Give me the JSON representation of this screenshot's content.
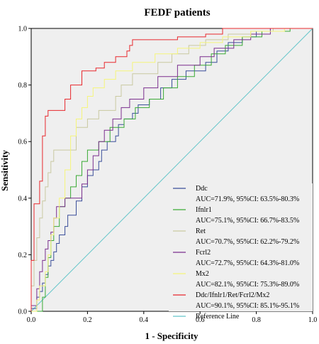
{
  "chart_data": {
    "type": "line",
    "title": "FEDF patients",
    "xlabel": "1 - Specificity",
    "ylabel": "Sensitivity",
    "xlim": [
      0,
      1
    ],
    "ylim": [
      0,
      1
    ],
    "x_ticks": [
      "0.0",
      "0.2",
      "0.4",
      "0.6",
      "0.8",
      "1.0"
    ],
    "y_ticks": [
      "0.0",
      "0.2",
      "0.4",
      "0.6",
      "0.8",
      "1.0"
    ],
    "grid": false,
    "legend_position": "bottom-right",
    "series": [
      {
        "name": "Ddc",
        "auc_text": "AUC=71.9%, 95%CI: 63.5%-80.3%",
        "color": "#3b4f9a",
        "points": [
          [
            0,
            0
          ],
          [
            0,
            0.01
          ],
          [
            0.02,
            0.01
          ],
          [
            0.02,
            0.05
          ],
          [
            0.03,
            0.05
          ],
          [
            0.03,
            0.07
          ],
          [
            0.04,
            0.07
          ],
          [
            0.04,
            0.1
          ],
          [
            0.05,
            0.1
          ],
          [
            0.05,
            0.13
          ],
          [
            0.06,
            0.13
          ],
          [
            0.06,
            0.16
          ],
          [
            0.07,
            0.16
          ],
          [
            0.07,
            0.18
          ],
          [
            0.08,
            0.18
          ],
          [
            0.08,
            0.21
          ],
          [
            0.09,
            0.21
          ],
          [
            0.09,
            0.24
          ],
          [
            0.1,
            0.24
          ],
          [
            0.1,
            0.27
          ],
          [
            0.12,
            0.27
          ],
          [
            0.12,
            0.3
          ],
          [
            0.13,
            0.3
          ],
          [
            0.13,
            0.34
          ],
          [
            0.16,
            0.34
          ],
          [
            0.16,
            0.39
          ],
          [
            0.18,
            0.39
          ],
          [
            0.18,
            0.44
          ],
          [
            0.2,
            0.44
          ],
          [
            0.2,
            0.48
          ],
          [
            0.22,
            0.48
          ],
          [
            0.22,
            0.5
          ],
          [
            0.24,
            0.5
          ],
          [
            0.24,
            0.53
          ],
          [
            0.25,
            0.53
          ],
          [
            0.25,
            0.57
          ],
          [
            0.27,
            0.57
          ],
          [
            0.27,
            0.6
          ],
          [
            0.3,
            0.6
          ],
          [
            0.3,
            0.62
          ],
          [
            0.31,
            0.62
          ],
          [
            0.31,
            0.66
          ],
          [
            0.33,
            0.66
          ],
          [
            0.33,
            0.68
          ],
          [
            0.36,
            0.68
          ],
          [
            0.36,
            0.7
          ],
          [
            0.38,
            0.7
          ],
          [
            0.38,
            0.73
          ],
          [
            0.42,
            0.73
          ],
          [
            0.42,
            0.75
          ],
          [
            0.46,
            0.75
          ],
          [
            0.46,
            0.79
          ],
          [
            0.5,
            0.79
          ],
          [
            0.5,
            0.82
          ],
          [
            0.55,
            0.82
          ],
          [
            0.55,
            0.85
          ],
          [
            0.62,
            0.85
          ],
          [
            0.62,
            0.88
          ],
          [
            0.66,
            0.88
          ],
          [
            0.66,
            0.92
          ],
          [
            0.7,
            0.92
          ],
          [
            0.7,
            0.95
          ],
          [
            0.75,
            0.95
          ],
          [
            0.75,
            0.97
          ],
          [
            0.8,
            0.97
          ],
          [
            0.8,
            0.99
          ],
          [
            0.85,
            0.99
          ],
          [
            0.85,
            1.0
          ],
          [
            1,
            1.0
          ]
        ]
      },
      {
        "name": "Ifnlr1",
        "auc_text": "AUC=75.1%, 95%CI: 66.7%-83.5%",
        "color": "#3aaa35",
        "points": [
          [
            0,
            0
          ],
          [
            0.04,
            0
          ],
          [
            0.04,
            0.05
          ],
          [
            0.05,
            0.05
          ],
          [
            0.05,
            0.12
          ],
          [
            0.06,
            0.12
          ],
          [
            0.06,
            0.19
          ],
          [
            0.07,
            0.19
          ],
          [
            0.07,
            0.25
          ],
          [
            0.08,
            0.25
          ],
          [
            0.08,
            0.3
          ],
          [
            0.1,
            0.3
          ],
          [
            0.1,
            0.37
          ],
          [
            0.12,
            0.37
          ],
          [
            0.12,
            0.4
          ],
          [
            0.14,
            0.4
          ],
          [
            0.14,
            0.44
          ],
          [
            0.16,
            0.44
          ],
          [
            0.16,
            0.48
          ],
          [
            0.18,
            0.48
          ],
          [
            0.18,
            0.53
          ],
          [
            0.2,
            0.53
          ],
          [
            0.2,
            0.57
          ],
          [
            0.24,
            0.57
          ],
          [
            0.24,
            0.6
          ],
          [
            0.28,
            0.6
          ],
          [
            0.28,
            0.65
          ],
          [
            0.33,
            0.65
          ],
          [
            0.33,
            0.68
          ],
          [
            0.37,
            0.68
          ],
          [
            0.37,
            0.72
          ],
          [
            0.42,
            0.72
          ],
          [
            0.42,
            0.75
          ],
          [
            0.47,
            0.75
          ],
          [
            0.47,
            0.79
          ],
          [
            0.52,
            0.79
          ],
          [
            0.52,
            0.83
          ],
          [
            0.58,
            0.83
          ],
          [
            0.58,
            0.87
          ],
          [
            0.64,
            0.87
          ],
          [
            0.64,
            0.91
          ],
          [
            0.69,
            0.91
          ],
          [
            0.69,
            0.94
          ],
          [
            0.75,
            0.94
          ],
          [
            0.75,
            0.97
          ],
          [
            0.82,
            0.97
          ],
          [
            0.82,
            0.99
          ],
          [
            0.92,
            0.99
          ],
          [
            0.92,
            1.0
          ],
          [
            1,
            1.0
          ]
        ]
      },
      {
        "name": "Ret",
        "auc_text": "AUC=70.7%, 95%CI: 62.2%-79.2%",
        "color": "#c9c9a0",
        "points": [
          [
            0,
            0
          ],
          [
            0,
            0.09
          ],
          [
            0.01,
            0.09
          ],
          [
            0.01,
            0.18
          ],
          [
            0.02,
            0.18
          ],
          [
            0.02,
            0.26
          ],
          [
            0.03,
            0.26
          ],
          [
            0.03,
            0.33
          ],
          [
            0.04,
            0.33
          ],
          [
            0.04,
            0.39
          ],
          [
            0.05,
            0.39
          ],
          [
            0.05,
            0.44
          ],
          [
            0.06,
            0.44
          ],
          [
            0.06,
            0.49
          ],
          [
            0.07,
            0.49
          ],
          [
            0.07,
            0.53
          ],
          [
            0.08,
            0.53
          ],
          [
            0.08,
            0.57
          ],
          [
            0.1,
            0.57
          ],
          [
            0.16,
            0.57
          ],
          [
            0.16,
            0.65
          ],
          [
            0.2,
            0.65
          ],
          [
            0.2,
            0.68
          ],
          [
            0.24,
            0.68
          ],
          [
            0.24,
            0.71
          ],
          [
            0.3,
            0.71
          ],
          [
            0.3,
            0.76
          ],
          [
            0.32,
            0.76
          ],
          [
            0.32,
            0.8
          ],
          [
            0.36,
            0.8
          ],
          [
            0.36,
            0.84
          ],
          [
            0.45,
            0.84
          ],
          [
            0.45,
            0.88
          ],
          [
            0.5,
            0.88
          ],
          [
            0.5,
            0.91
          ],
          [
            0.56,
            0.91
          ],
          [
            0.56,
            0.94
          ],
          [
            0.62,
            0.94
          ],
          [
            0.62,
            0.96
          ],
          [
            0.7,
            0.96
          ],
          [
            0.7,
            0.98
          ],
          [
            0.78,
            0.98
          ],
          [
            0.78,
            0.99
          ],
          [
            0.86,
            0.99
          ],
          [
            0.86,
            1.0
          ],
          [
            1,
            1.0
          ]
        ]
      },
      {
        "name": "Fcrl2",
        "auc_text": "AUC=72.7%, 95%CI: 64.3%-81.0%",
        "color": "#7b2f8e",
        "points": [
          [
            0,
            0
          ],
          [
            0,
            0.02
          ],
          [
            0.02,
            0.02
          ],
          [
            0.02,
            0.08
          ],
          [
            0.03,
            0.08
          ],
          [
            0.03,
            0.14
          ],
          [
            0.04,
            0.14
          ],
          [
            0.04,
            0.18
          ],
          [
            0.05,
            0.18
          ],
          [
            0.05,
            0.22
          ],
          [
            0.06,
            0.22
          ],
          [
            0.06,
            0.25
          ],
          [
            0.07,
            0.25
          ],
          [
            0.07,
            0.28
          ],
          [
            0.08,
            0.28
          ],
          [
            0.08,
            0.33
          ],
          [
            0.09,
            0.33
          ],
          [
            0.09,
            0.37
          ],
          [
            0.12,
            0.37
          ],
          [
            0.12,
            0.4
          ],
          [
            0.18,
            0.4
          ],
          [
            0.18,
            0.45
          ],
          [
            0.2,
            0.45
          ],
          [
            0.2,
            0.5
          ],
          [
            0.22,
            0.5
          ],
          [
            0.22,
            0.55
          ],
          [
            0.24,
            0.55
          ],
          [
            0.24,
            0.6
          ],
          [
            0.26,
            0.6
          ],
          [
            0.26,
            0.64
          ],
          [
            0.29,
            0.64
          ],
          [
            0.29,
            0.68
          ],
          [
            0.32,
            0.68
          ],
          [
            0.32,
            0.72
          ],
          [
            0.35,
            0.72
          ],
          [
            0.35,
            0.75
          ],
          [
            0.4,
            0.75
          ],
          [
            0.4,
            0.79
          ],
          [
            0.45,
            0.79
          ],
          [
            0.45,
            0.83
          ],
          [
            0.52,
            0.83
          ],
          [
            0.52,
            0.87
          ],
          [
            0.6,
            0.87
          ],
          [
            0.6,
            0.9
          ],
          [
            0.65,
            0.9
          ],
          [
            0.65,
            0.93
          ],
          [
            0.72,
            0.93
          ],
          [
            0.72,
            0.96
          ],
          [
            0.78,
            0.96
          ],
          [
            0.78,
            0.98
          ],
          [
            0.85,
            0.98
          ],
          [
            0.85,
            1.0
          ],
          [
            1,
            1.0
          ]
        ]
      },
      {
        "name": "Mx2",
        "auc_text": "AUC=82.1%, 95%CI: 75.3%-89.0%",
        "color": "#f5f57a",
        "points": [
          [
            0,
            0
          ],
          [
            0.02,
            0
          ],
          [
            0.02,
            0.04
          ],
          [
            0.03,
            0.04
          ],
          [
            0.03,
            0.09
          ],
          [
            0.05,
            0.09
          ],
          [
            0.05,
            0.14
          ],
          [
            0.06,
            0.14
          ],
          [
            0.06,
            0.2
          ],
          [
            0.07,
            0.2
          ],
          [
            0.07,
            0.27
          ],
          [
            0.08,
            0.27
          ],
          [
            0.08,
            0.33
          ],
          [
            0.1,
            0.33
          ],
          [
            0.1,
            0.4
          ],
          [
            0.12,
            0.4
          ],
          [
            0.12,
            0.5
          ],
          [
            0.14,
            0.5
          ],
          [
            0.14,
            0.62
          ],
          [
            0.16,
            0.62
          ],
          [
            0.16,
            0.68
          ],
          [
            0.18,
            0.68
          ],
          [
            0.18,
            0.72
          ],
          [
            0.2,
            0.72
          ],
          [
            0.2,
            0.76
          ],
          [
            0.22,
            0.76
          ],
          [
            0.22,
            0.79
          ],
          [
            0.26,
            0.79
          ],
          [
            0.26,
            0.82
          ],
          [
            0.3,
            0.82
          ],
          [
            0.3,
            0.85
          ],
          [
            0.36,
            0.85
          ],
          [
            0.36,
            0.88
          ],
          [
            0.44,
            0.88
          ],
          [
            0.44,
            0.91
          ],
          [
            0.52,
            0.91
          ],
          [
            0.52,
            0.93
          ],
          [
            0.6,
            0.93
          ],
          [
            0.6,
            0.95
          ],
          [
            0.68,
            0.95
          ],
          [
            0.68,
            0.97
          ],
          [
            0.78,
            0.97
          ],
          [
            0.78,
            0.99
          ],
          [
            0.9,
            0.99
          ],
          [
            0.9,
            1.0
          ],
          [
            1,
            1.0
          ]
        ]
      },
      {
        "name": "Ddc/Ifnlr1/Ret/Fcrl2/Mx2",
        "auc_text": "AUC=90.1%, 95%CI: 85.1%-95.1%",
        "color": "#e8282d",
        "points": [
          [
            0,
            0
          ],
          [
            0,
            0.18
          ],
          [
            0.01,
            0.18
          ],
          [
            0.01,
            0.38
          ],
          [
            0.03,
            0.38
          ],
          [
            0.03,
            0.46
          ],
          [
            0.04,
            0.46
          ],
          [
            0.04,
            0.62
          ],
          [
            0.05,
            0.62
          ],
          [
            0.05,
            0.69
          ],
          [
            0.06,
            0.69
          ],
          [
            0.06,
            0.71
          ],
          [
            0.12,
            0.71
          ],
          [
            0.12,
            0.75
          ],
          [
            0.14,
            0.75
          ],
          [
            0.14,
            0.8
          ],
          [
            0.18,
            0.8
          ],
          [
            0.18,
            0.85
          ],
          [
            0.23,
            0.85
          ],
          [
            0.23,
            0.86
          ],
          [
            0.26,
            0.86
          ],
          [
            0.26,
            0.88
          ],
          [
            0.3,
            0.88
          ],
          [
            0.3,
            0.9
          ],
          [
            0.34,
            0.9
          ],
          [
            0.34,
            0.92
          ],
          [
            0.35,
            0.92
          ],
          [
            0.35,
            0.94
          ],
          [
            0.36,
            0.94
          ],
          [
            0.36,
            0.96
          ],
          [
            0.52,
            0.96
          ],
          [
            0.52,
            0.97
          ],
          [
            0.62,
            0.97
          ],
          [
            0.62,
            0.98
          ],
          [
            0.68,
            0.98
          ],
          [
            0.68,
            1.0
          ],
          [
            1,
            1.0
          ]
        ]
      },
      {
        "name": "Reference Line",
        "auc_text": "",
        "color": "#63c5c9",
        "points": [
          [
            0,
            0
          ],
          [
            1,
            1
          ]
        ]
      }
    ]
  }
}
